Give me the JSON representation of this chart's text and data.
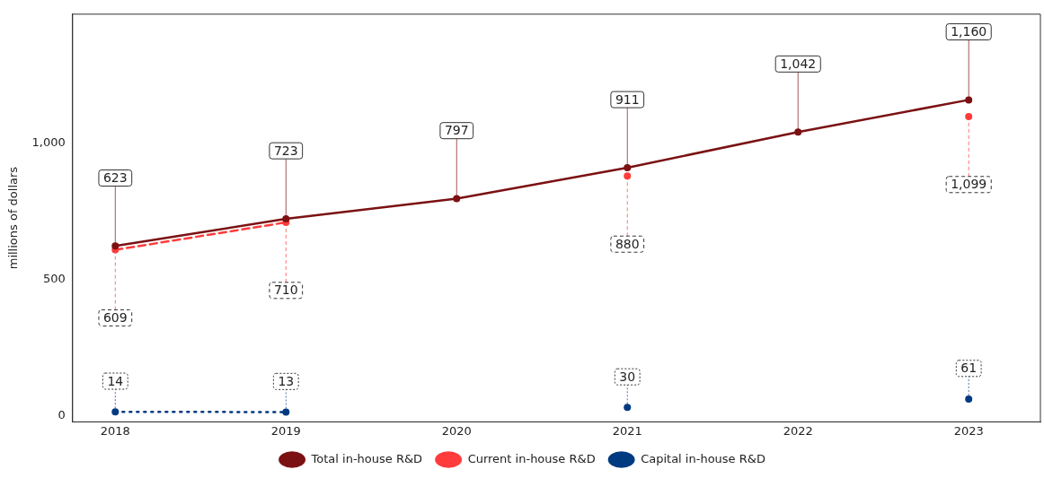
{
  "chart_data": {
    "type": "line",
    "ylabel": "millions of dollars",
    "x": [
      2018,
      2019,
      2020,
      2021,
      2022,
      2023
    ],
    "series": [
      {
        "name": "Total in-house R&D",
        "color": "#7b1113",
        "values": [
          623,
          723,
          797,
          911,
          1042,
          1160
        ],
        "value_labels": [
          "623",
          "723",
          "797",
          "911",
          "1,042",
          "1,160"
        ],
        "line_style": "solid"
      },
      {
        "name": "Current in-house R&D",
        "color": "#ff3b3b",
        "values": [
          609,
          710,
          null,
          880,
          null,
          1099
        ],
        "value_labels": [
          "609",
          "710",
          null,
          "880",
          null,
          "1,099"
        ],
        "line_style": "dashed"
      },
      {
        "name": "Capital in-house R&D",
        "color": "#003a80",
        "values": [
          14,
          13,
          null,
          30,
          null,
          61
        ],
        "value_labels": [
          "14",
          "13",
          null,
          "30",
          null,
          "61"
        ],
        "line_style": "dotted"
      }
    ],
    "xlim": [
      2017.75,
      2023.42
    ],
    "xticks": [
      2018,
      2019,
      2020,
      2021,
      2022,
      2023
    ],
    "ylim": [
      -23,
      1475
    ],
    "yticks": [
      0,
      500,
      {
        "value": 1000,
        "label": "1,000"
      }
    ],
    "grid": false,
    "legend": "bottom",
    "marker": "circle"
  }
}
